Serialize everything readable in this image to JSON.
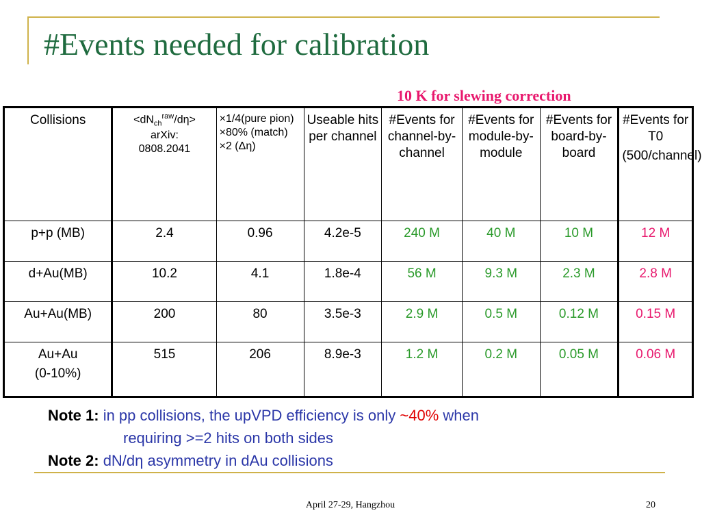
{
  "title": "#Events needed for calibration",
  "slewing_note": "10 K for slewing correction",
  "table": {
    "headers": {
      "col1": "Collisions",
      "col2": {
        "prefix": "<dN",
        "sub": "ch",
        "sup": "raw",
        "suffix": "/dη>",
        "line2": "arXiv:",
        "line3": "0808.2041"
      },
      "col3": {
        "line1": "×1/4(pure pion)",
        "line2": "×80% (match)",
        "line3": "×2 (Δη)"
      },
      "col4": "Useable hits per channel",
      "col5": "#Events for channel-by-channel",
      "col6": "#Events for module-by-module",
      "col7": "#Events for board-by-board",
      "col8": {
        "line1": "#Events for T0",
        "line2": "(500/channel)"
      }
    },
    "rows": [
      {
        "collision": "p+p (MB)",
        "collision2": "",
        "dn": "2.4",
        "factor": "0.96",
        "hits": "4.2e-5",
        "chan": "240 M",
        "module": "40 M",
        "board": "10 M",
        "t0": "12 M"
      },
      {
        "collision": "d+Au(MB)",
        "collision2": "",
        "dn": "10.2",
        "factor": "4.1",
        "hits": "1.8e-4",
        "chan": "56 M",
        "module": "9.3 M",
        "board": "2.3 M",
        "t0": "2.8 M"
      },
      {
        "collision": "Au+Au(MB)",
        "collision2": "",
        "dn": "200",
        "factor": "80",
        "hits": "3.5e-3",
        "chan": "2.9 M",
        "module": "0.5 M",
        "board": "0.12 M",
        "t0": "0.15 M"
      },
      {
        "collision": "Au+Au",
        "collision2": "(0-10%)",
        "dn": "515",
        "factor": "206",
        "hits": "8.9e-3",
        "chan": "1.2 M",
        "module": "0.2 M",
        "board": "0.05 M",
        "t0": "0.06 M"
      }
    ]
  },
  "notes": {
    "note1_label": "Note 1:",
    "note1_text_a": "in pp collisions, the upVPD efficiency is only",
    "note1_highlight": "~40%",
    "note1_text_b": "when",
    "note1_text_c": "requiring >=2 hits on both sides",
    "note2_label": "Note 2:",
    "note2_text": "dN/dη asymmetry in dAu collisions"
  },
  "footer": "April 27-29, Hangzhou",
  "page_number": "20",
  "colors": {
    "title": "#1f6b3f",
    "frame": "#cfb24a",
    "green": "#2a9a2a",
    "pink": "#e8186d",
    "note_blue": "#2b37a8"
  }
}
